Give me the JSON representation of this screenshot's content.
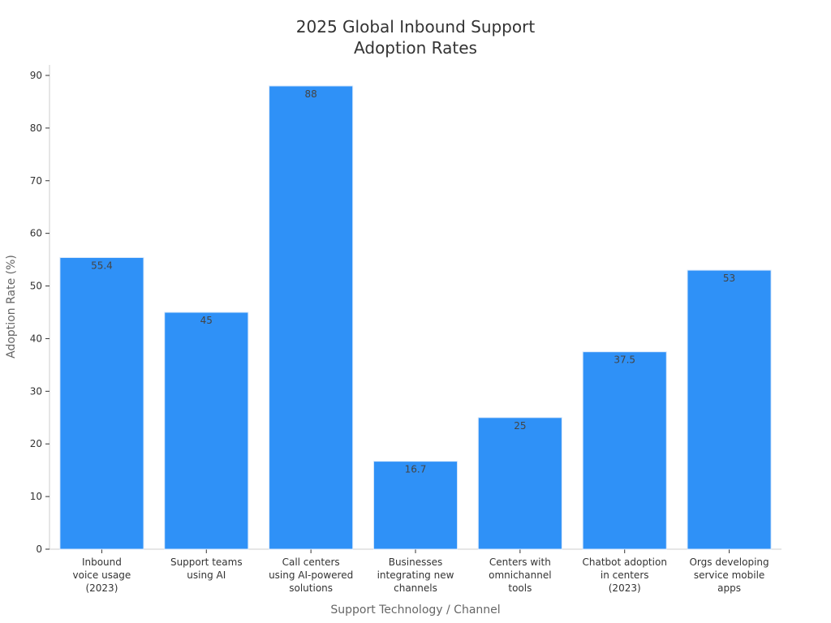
{
  "chart_data": {
    "type": "bar",
    "title_lines": [
      "2025 Global Inbound Support",
      "Adoption Rates"
    ],
    "xlabel": "Support Technology / Channel",
    "ylabel": "Adoption Rate (%)",
    "ylim": [
      0,
      92
    ],
    "yticks": [
      0,
      10,
      20,
      30,
      40,
      50,
      60,
      70,
      80,
      90
    ],
    "grid": false,
    "bar_color": "#2f91f7",
    "categories": [
      [
        "Inbound",
        "voice usage",
        "(2023)"
      ],
      [
        "Support teams",
        "using AI"
      ],
      [
        "Call centers",
        "using AI-powered",
        "solutions"
      ],
      [
        "Businesses",
        "integrating new",
        "channels"
      ],
      [
        "Centers with",
        "omnichannel",
        "tools"
      ],
      [
        "Chatbot adoption",
        "in centers",
        "(2023)"
      ],
      [
        "Orgs developing",
        "service mobile",
        "apps"
      ]
    ],
    "values": [
      55.4,
      45,
      88,
      16.7,
      25,
      37.5,
      53
    ],
    "value_labels": [
      "55.4",
      "45",
      "88",
      "16.7",
      "25",
      "37.5",
      "53"
    ]
  }
}
